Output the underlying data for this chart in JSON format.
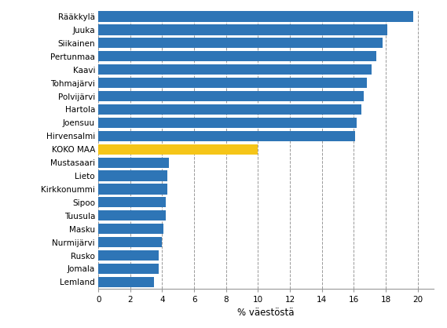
{
  "categories": [
    "Lemland",
    "Jomala",
    "Rusko",
    "Nurmijärvi",
    "Masku",
    "Tuusula",
    "Sipoo",
    "Kirkkonummi",
    "Lieto",
    "Mustasaari",
    "KOKO MAA",
    "Hirvensalmi",
    "Joensuu",
    "Hartola",
    "Polvijärvi",
    "Tohmajärvi",
    "Kaavi",
    "Pertunmaa",
    "Siikainen",
    "Juuka",
    "Rääkkylä"
  ],
  "values": [
    3.5,
    3.8,
    3.8,
    4.0,
    4.1,
    4.2,
    4.2,
    4.3,
    4.3,
    4.4,
    10.0,
    16.1,
    16.2,
    16.5,
    16.6,
    16.8,
    17.1,
    17.4,
    17.8,
    18.1,
    19.7
  ],
  "colors": [
    "#2e75b6",
    "#2e75b6",
    "#2e75b6",
    "#2e75b6",
    "#2e75b6",
    "#2e75b6",
    "#2e75b6",
    "#2e75b6",
    "#2e75b6",
    "#2e75b6",
    "#f5c518",
    "#2e75b6",
    "#2e75b6",
    "#2e75b6",
    "#2e75b6",
    "#2e75b6",
    "#2e75b6",
    "#2e75b6",
    "#2e75b6",
    "#2e75b6",
    "#2e75b6"
  ],
  "xlabel": "% väestöstä",
  "xlim": [
    0,
    21
  ],
  "xticks": [
    0,
    2,
    4,
    6,
    8,
    10,
    12,
    14,
    16,
    18,
    20
  ],
  "bar_height": 0.78,
  "grid_color": "#999999",
  "background_color": "#ffffff",
  "label_fontsize": 7.5,
  "tick_fontsize": 7.5,
  "xlabel_fontsize": 8.5
}
